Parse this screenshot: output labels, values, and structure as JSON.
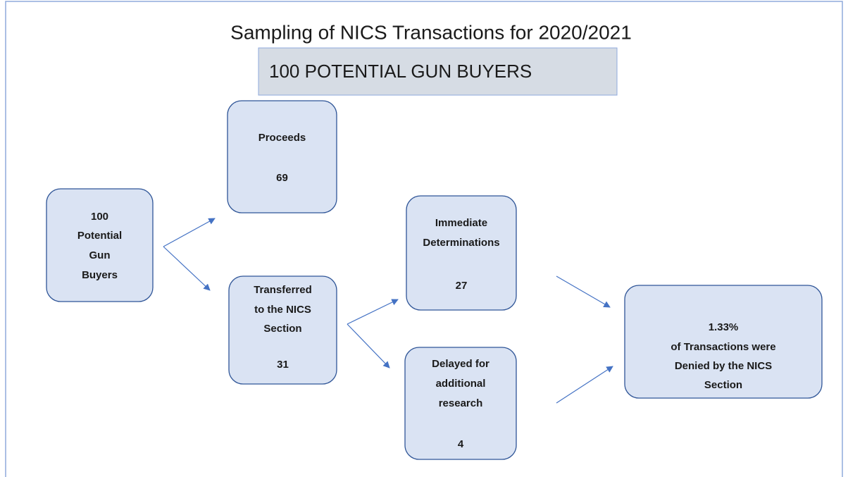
{
  "title": "Sampling  of NICS Transactions for 2020/2021",
  "subtitle": "100 POTENTIAL GUN BUYERS",
  "nodes": [
    {
      "label": [
        "100",
        "Potential",
        "Gun",
        "Buyers"
      ]
    },
    {
      "label": [
        "Proceeds"
      ],
      "value": "69"
    },
    {
      "label": [
        "Transferred",
        "to the NICS",
        "Section"
      ],
      "value": "31"
    },
    {
      "label": [
        "Immediate",
        "Determinations"
      ],
      "value": "27"
    },
    {
      "label": [
        "Delayed for",
        "additional",
        "research"
      ],
      "value": "4"
    },
    {
      "label": [
        "1.33%",
        "of Transactions were",
        "Denied by the NICS",
        "Section"
      ]
    }
  ]
}
